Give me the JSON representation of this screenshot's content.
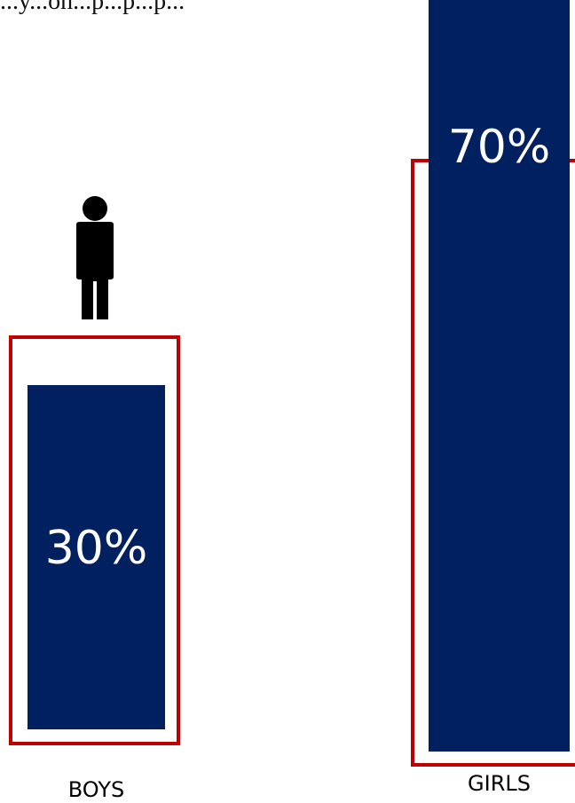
{
  "header_text": "...y...on...p...p...p...",
  "chart_data": {
    "type": "bar",
    "categories": [
      "BOYS",
      "GIRLS"
    ],
    "values": [
      30,
      70
    ],
    "value_labels": [
      "30%",
      "70%"
    ],
    "ylim": [
      0,
      100
    ],
    "icons": [
      "male-figure-icon",
      "female-figure-icon"
    ],
    "bar_color": "#002060",
    "frame_color": "#c00000"
  }
}
